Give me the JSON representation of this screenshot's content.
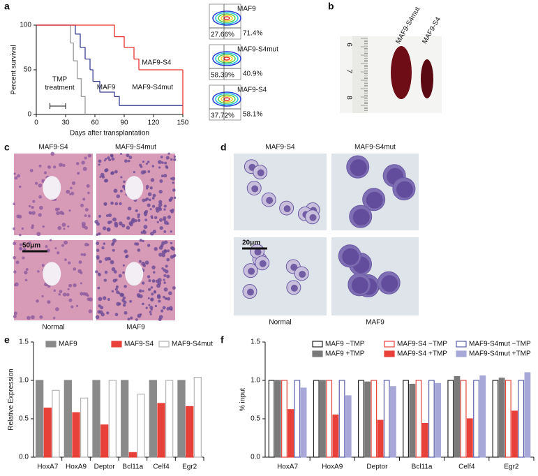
{
  "figure": {
    "panel_labels": [
      "a",
      "b",
      "c",
      "d",
      "e",
      "f"
    ],
    "flow": [
      {
        "label": "MAF9",
        "right": "71.4%",
        "left": "27.66%"
      },
      {
        "label": "MAF9-S4mut",
        "right": "40.9%",
        "left": "58.39%"
      },
      {
        "label": "MAF9-S4",
        "right": "58.1%",
        "left": "37.72%"
      }
    ],
    "spleen": {
      "ruler": [
        "6",
        "7",
        "8"
      ],
      "labels": [
        "MAF9-S4mut",
        "MAF9-S4"
      ]
    },
    "histology": {
      "top": [
        "MAF9-S4",
        "MAF9-S4mut"
      ],
      "bottom": [
        "Normal",
        "MAF9"
      ],
      "scale": "50μm"
    },
    "cytology": {
      "top": [
        "MAF9-S4",
        "MAF9-S4mut"
      ],
      "bottom": [
        "Normal",
        "MAF9"
      ],
      "scale": "20μm"
    }
  },
  "chart_data": [
    {
      "type": "survival",
      "xlabel": "Days after transplantation",
      "ylabel": "Percent survival",
      "annotation": [
        "TMP",
        "treatment"
      ],
      "xlim": [
        0,
        150
      ],
      "xticks": [
        0,
        30,
        60,
        90,
        120,
        150
      ],
      "ylim": [
        0,
        100
      ],
      "yticks": [
        0,
        50,
        100
      ],
      "series": [
        {
          "name": "MAF9",
          "color": "#9a9a9a",
          "x": [
            0,
            35,
            38,
            42,
            46,
            50
          ],
          "values": [
            100,
            80,
            60,
            40,
            20,
            0
          ]
        },
        {
          "name": "MAF9-S4mut",
          "color": "#3a3f8f",
          "x": [
            0,
            40,
            45,
            50,
            55,
            58,
            65,
            80,
            85,
            150
          ],
          "values": [
            100,
            90,
            75,
            62,
            50,
            37,
            25,
            20,
            10,
            10
          ]
        },
        {
          "name": "MAF9-S4",
          "color": "#e8322c",
          "x": [
            0,
            80,
            90,
            100,
            105,
            150,
            150
          ],
          "values": [
            100,
            87,
            75,
            62,
            50,
            50,
            0
          ]
        }
      ]
    },
    {
      "type": "bar",
      "ylabel": "Relative Expression",
      "categories": [
        "HoxA7",
        "HoxA9",
        "Deptor",
        "Bcl11a",
        "Celf4",
        "Egr2"
      ],
      "ylim": [
        0,
        1.5
      ],
      "yticks": [
        {
          "value": 0,
          "label": "0.0"
        },
        0.5,
        {
          "value": 1,
          "label": "1.0"
        },
        1.5
      ],
      "series": [
        {
          "name": "MAF9",
          "color": "#8a8a8a",
          "fill": "#8a8a8a",
          "values": [
            1,
            1,
            1,
            1,
            1,
            1
          ]
        },
        {
          "name": "MAF9-S4",
          "color": "#e8413a",
          "fill": "#e8413a",
          "values": [
            0.64,
            0.58,
            0.42,
            0.06,
            0.7,
            0.66
          ]
        },
        {
          "name": "MAF9-S4mut",
          "color": "#b5b5b5",
          "fill": "#ffffff",
          "values": [
            0.87,
            0.77,
            1,
            0.82,
            1,
            1.04
          ]
        }
      ]
    },
    {
      "type": "bar",
      "ylabel": "% input",
      "categories": [
        "HoxA7",
        "HoxA9",
        "Deptor",
        "Bcl11a",
        "Celf4",
        "Egr2"
      ],
      "ylim": [
        0,
        1.5
      ],
      "yticks": [
        {
          "value": 0,
          "label": "0.0"
        },
        0.5,
        {
          "value": 1,
          "label": "1.0"
        },
        1.5
      ],
      "series": [
        {
          "name": "MAF9 −TMP",
          "color": "#222222",
          "fill": "#ffffff",
          "values": [
            1,
            1,
            1,
            1,
            1,
            1
          ]
        },
        {
          "name": "MAF9 +TMP",
          "color": "#7a7a7a",
          "fill": "#7a7a7a",
          "values": [
            1,
            1,
            0.98,
            0.95,
            1.05,
            1.03
          ]
        },
        {
          "name": "MAF9-S4 −TMP",
          "color": "#e8413a",
          "fill": "#ffffff",
          "values": [
            1,
            1,
            1,
            1,
            1,
            1
          ]
        },
        {
          "name": "MAF9-S4 +TMP",
          "color": "#e8413a",
          "fill": "#e8413a",
          "values": [
            0.62,
            0.55,
            0.48,
            0.44,
            0.5,
            0.6
          ]
        },
        {
          "name": "MAF9-S4mut −TMP",
          "color": "#5a5fa8",
          "fill": "#ffffff",
          "values": [
            1,
            1,
            1,
            1,
            1,
            1
          ]
        },
        {
          "name": "MAF9-S4mut +TMP",
          "color": "#a7a8d8",
          "fill": "#a7a8d8",
          "values": [
            0.9,
            0.8,
            0.92,
            0.96,
            1.06,
            1.1
          ]
        }
      ]
    }
  ]
}
